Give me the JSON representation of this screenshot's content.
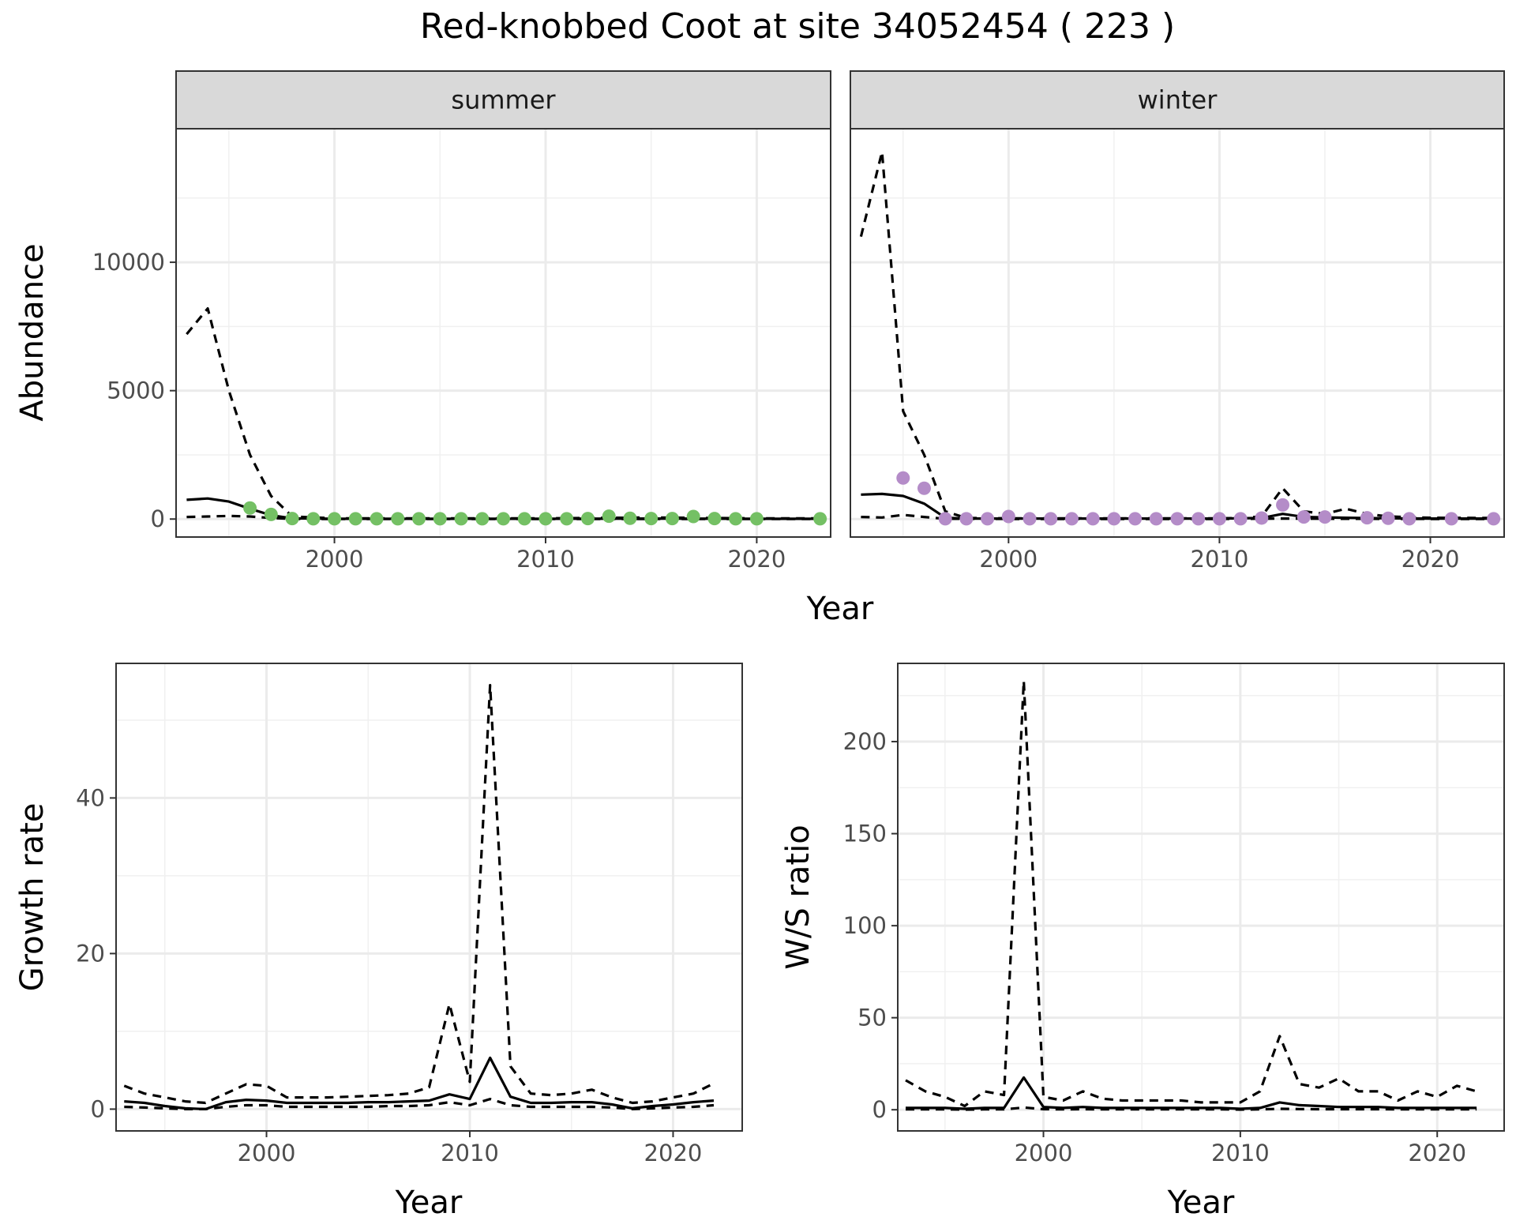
{
  "title": "Red-knobbed Coot at site 34052454 ( 223 )",
  "chart_data": [
    {
      "type": "line",
      "panel": "abundance",
      "facets": [
        "summer",
        "winter"
      ],
      "xlabel": "Year",
      "ylabel": "Abundance",
      "xlim": [
        1992.5,
        2023.5
      ],
      "ylim": [
        -700,
        15200
      ],
      "xticks": [
        2000,
        2010,
        2020
      ],
      "yticks": [
        0,
        5000,
        10000
      ],
      "grid": true,
      "facet_data": [
        {
          "name": "summer",
          "point_color": "#74c064",
          "points": [
            [
              1996,
              430
            ],
            [
              1997,
              180
            ],
            [
              1998,
              20
            ],
            [
              1999,
              10
            ],
            [
              2000,
              10
            ],
            [
              2001,
              10
            ],
            [
              2002,
              10
            ],
            [
              2003,
              10
            ],
            [
              2004,
              10
            ],
            [
              2005,
              10
            ],
            [
              2006,
              10
            ],
            [
              2007,
              10
            ],
            [
              2008,
              10
            ],
            [
              2009,
              10
            ],
            [
              2010,
              10
            ],
            [
              2011,
              10
            ],
            [
              2012,
              20
            ],
            [
              2013,
              110
            ],
            [
              2014,
              30
            ],
            [
              2015,
              20
            ],
            [
              2016,
              20
            ],
            [
              2017,
              100
            ],
            [
              2018,
              20
            ],
            [
              2019,
              10
            ],
            [
              2020,
              10
            ],
            [
              2023,
              10
            ]
          ],
          "series": [
            {
              "name": "",
              "style": "solid",
              "x": [
                1993,
                1994,
                1995,
                1996,
                1997,
                1998,
                2000,
                2005,
                2010,
                2015,
                2020,
                2023
              ],
              "values": [
                750,
                800,
                680,
                400,
                150,
                30,
                10,
                10,
                10,
                20,
                10,
                10
              ]
            },
            {
              "name": "",
              "style": "dashed",
              "x": [
                1993,
                1994,
                1995,
                1996,
                1997,
                1998,
                2000,
                2005,
                2010,
                2015,
                2020,
                2023
              ],
              "values": [
                7200,
                8200,
                5000,
                2500,
                900,
                100,
                30,
                30,
                30,
                60,
                30,
                30
              ]
            },
            {
              "name": "",
              "style": "dashed",
              "x": [
                1993,
                1994,
                1995,
                1996,
                1997,
                1998,
                2000,
                2005,
                2010,
                2015,
                2020,
                2023
              ],
              "values": [
                80,
                100,
                120,
                100,
                40,
                5,
                3,
                3,
                3,
                5,
                3,
                3
              ]
            }
          ]
        },
        {
          "name": "winter",
          "point_color": "#b48cc8",
          "points": [
            [
              1995,
              1600
            ],
            [
              1996,
              1200
            ],
            [
              1997,
              10
            ],
            [
              1998,
              10
            ],
            [
              1999,
              10
            ],
            [
              2000,
              100
            ],
            [
              2001,
              10
            ],
            [
              2002,
              10
            ],
            [
              2003,
              10
            ],
            [
              2004,
              10
            ],
            [
              2005,
              10
            ],
            [
              2006,
              10
            ],
            [
              2007,
              10
            ],
            [
              2008,
              10
            ],
            [
              2009,
              10
            ],
            [
              2010,
              10
            ],
            [
              2011,
              10
            ],
            [
              2012,
              40
            ],
            [
              2013,
              550
            ],
            [
              2014,
              80
            ],
            [
              2015,
              80
            ],
            [
              2017,
              50
            ],
            [
              2018,
              30
            ],
            [
              2019,
              10
            ],
            [
              2021,
              10
            ],
            [
              2023,
              10
            ]
          ],
          "series": [
            {
              "name": "",
              "style": "solid",
              "x": [
                1993,
                1994,
                1995,
                1996,
                1997,
                1998,
                2000,
                2005,
                2010,
                2012,
                2013,
                2014,
                2016,
                2018,
                2020,
                2023
              ],
              "values": [
                950,
                980,
                900,
                600,
                50,
                20,
                20,
                20,
                20,
                40,
                200,
                80,
                50,
                30,
                20,
                20
              ]
            },
            {
              "name": "",
              "style": "dashed",
              "x": [
                1993,
                1994,
                1995,
                1996,
                1997,
                1998,
                2000,
                2005,
                2010,
                2011,
                2012,
                2013,
                2014,
                2015,
                2016,
                2017,
                2018,
                2020,
                2023
              ],
              "values": [
                11000,
                14300,
                4200,
                2500,
                300,
                40,
                30,
                30,
                30,
                40,
                100,
                1200,
                300,
                200,
                400,
                200,
                100,
                50,
                40
              ]
            },
            {
              "name": "",
              "style": "dashed",
              "x": [
                1993,
                1994,
                1995,
                1996,
                1997,
                2000,
                2005,
                2010,
                2013,
                2016,
                2020,
                2023
              ],
              "values": [
                80,
                60,
                160,
                80,
                10,
                5,
                5,
                5,
                20,
                10,
                5,
                5
              ]
            }
          ]
        }
      ]
    },
    {
      "type": "line",
      "panel": "growth-rate",
      "xlabel": "Year",
      "ylabel": "Growth rate",
      "xlim": [
        1992.6,
        2023.4
      ],
      "ylim": [
        -2.8,
        57.3
      ],
      "xticks": [
        2000,
        2010,
        2020
      ],
      "yticks": [
        0,
        20,
        40
      ],
      "grid": true,
      "series": [
        {
          "name": "",
          "style": "solid",
          "x": [
            1993,
            1994,
            1995,
            1996,
            1997,
            1998,
            1999,
            2000,
            2001,
            2002,
            2003,
            2004,
            2005,
            2006,
            2007,
            2008,
            2009,
            2010,
            2011,
            2012,
            2013,
            2014,
            2015,
            2016,
            2017,
            2018,
            2019,
            2020,
            2021,
            2022
          ],
          "values": [
            1.0,
            0.8,
            0.4,
            0.1,
            0.0,
            0.9,
            1.2,
            1.1,
            0.8,
            0.8,
            0.8,
            0.8,
            0.9,
            0.9,
            1.0,
            1.1,
            1.9,
            1.3,
            6.6,
            1.6,
            0.8,
            0.8,
            0.9,
            0.9,
            0.6,
            0.1,
            0.4,
            0.6,
            0.9,
            1.1
          ]
        },
        {
          "name": "",
          "style": "dashed",
          "x": [
            1993,
            1994,
            1995,
            1996,
            1997,
            1998,
            1999,
            2000,
            2001,
            2002,
            2003,
            2004,
            2005,
            2006,
            2007,
            2008,
            2009,
            2010,
            2011,
            2012,
            2013,
            2014,
            2015,
            2016,
            2017,
            2018,
            2019,
            2020,
            2021,
            2022
          ],
          "values": [
            3.0,
            2.0,
            1.5,
            1.0,
            0.8,
            2.0,
            3.2,
            3.0,
            1.5,
            1.5,
            1.5,
            1.6,
            1.7,
            1.8,
            2.0,
            2.8,
            13.5,
            3.5,
            54.5,
            5.5,
            2.0,
            1.8,
            2.0,
            2.5,
            1.5,
            0.8,
            1.0,
            1.5,
            2.0,
            3.3
          ]
        },
        {
          "name": "",
          "style": "dashed",
          "x": [
            1993,
            1994,
            1995,
            1996,
            1997,
            1998,
            1999,
            2000,
            2001,
            2002,
            2003,
            2004,
            2005,
            2006,
            2007,
            2008,
            2009,
            2010,
            2011,
            2012,
            2013,
            2014,
            2015,
            2016,
            2017,
            2018,
            2019,
            2020,
            2021,
            2022
          ],
          "values": [
            0.3,
            0.2,
            0.1,
            0.0,
            0.0,
            0.3,
            0.5,
            0.5,
            0.3,
            0.3,
            0.3,
            0.3,
            0.3,
            0.4,
            0.4,
            0.5,
            0.9,
            0.5,
            1.3,
            0.5,
            0.3,
            0.3,
            0.3,
            0.3,
            0.2,
            0.0,
            0.1,
            0.2,
            0.3,
            0.5
          ]
        }
      ]
    },
    {
      "type": "line",
      "panel": "ws-ratio",
      "xlabel": "Year",
      "ylabel": "W/S ratio",
      "xlim": [
        1992.6,
        2023.4
      ],
      "ylim": [
        -11.5,
        242.5
      ],
      "xticks": [
        2000,
        2010,
        2020
      ],
      "yticks": [
        0,
        50,
        100,
        150,
        200
      ],
      "grid": true,
      "series": [
        {
          "name": "",
          "style": "solid",
          "x": [
            1993,
            1994,
            1995,
            1996,
            1997,
            1998,
            1999,
            2000,
            2001,
            2002,
            2003,
            2004,
            2005,
            2006,
            2007,
            2008,
            2009,
            2010,
            2011,
            2012,
            2013,
            2014,
            2015,
            2016,
            2017,
            2018,
            2019,
            2020,
            2021,
            2022
          ],
          "values": [
            1.0,
            1.0,
            1.0,
            0.5,
            1.0,
            1.0,
            17.5,
            1.5,
            1.0,
            1.5,
            1.0,
            1.0,
            1.0,
            1.0,
            1.0,
            1.0,
            1.0,
            0.5,
            1.0,
            4.0,
            2.5,
            2.0,
            1.5,
            1.5,
            1.5,
            1.0,
            1.0,
            1.0,
            1.0,
            1.0
          ]
        },
        {
          "name": "",
          "style": "dashed",
          "x": [
            1993,
            1994,
            1995,
            1996,
            1997,
            1998,
            1999,
            2000,
            2001,
            2002,
            2003,
            2004,
            2005,
            2006,
            2007,
            2008,
            2009,
            2010,
            2011,
            2012,
            2013,
            2014,
            2015,
            2016,
            2017,
            2018,
            2019,
            2020,
            2021,
            2022
          ],
          "values": [
            16,
            10,
            7,
            2,
            10,
            8,
            233,
            7,
            5,
            10,
            6,
            5,
            5,
            5,
            5,
            4,
            4,
            4,
            10,
            40,
            14,
            12,
            17,
            10,
            10,
            5,
            10,
            7,
            13,
            10
          ]
        },
        {
          "name": "",
          "style": "dashed",
          "x": [
            1993,
            1994,
            1995,
            1996,
            1997,
            1998,
            1999,
            2000,
            2001,
            2002,
            2003,
            2004,
            2005,
            2006,
            2007,
            2008,
            2009,
            2010,
            2011,
            2012,
            2013,
            2014,
            2015,
            2016,
            2017,
            2018,
            2019,
            2020,
            2021,
            2022
          ],
          "values": [
            0.2,
            0.2,
            0.2,
            0.1,
            0.2,
            0.2,
            1.2,
            0.3,
            0.2,
            0.3,
            0.2,
            0.2,
            0.2,
            0.2,
            0.2,
            0.2,
            0.2,
            0.1,
            0.2,
            0.5,
            0.4,
            0.3,
            0.3,
            0.3,
            0.3,
            0.2,
            0.2,
            0.2,
            0.2,
            0.2
          ]
        }
      ]
    }
  ]
}
